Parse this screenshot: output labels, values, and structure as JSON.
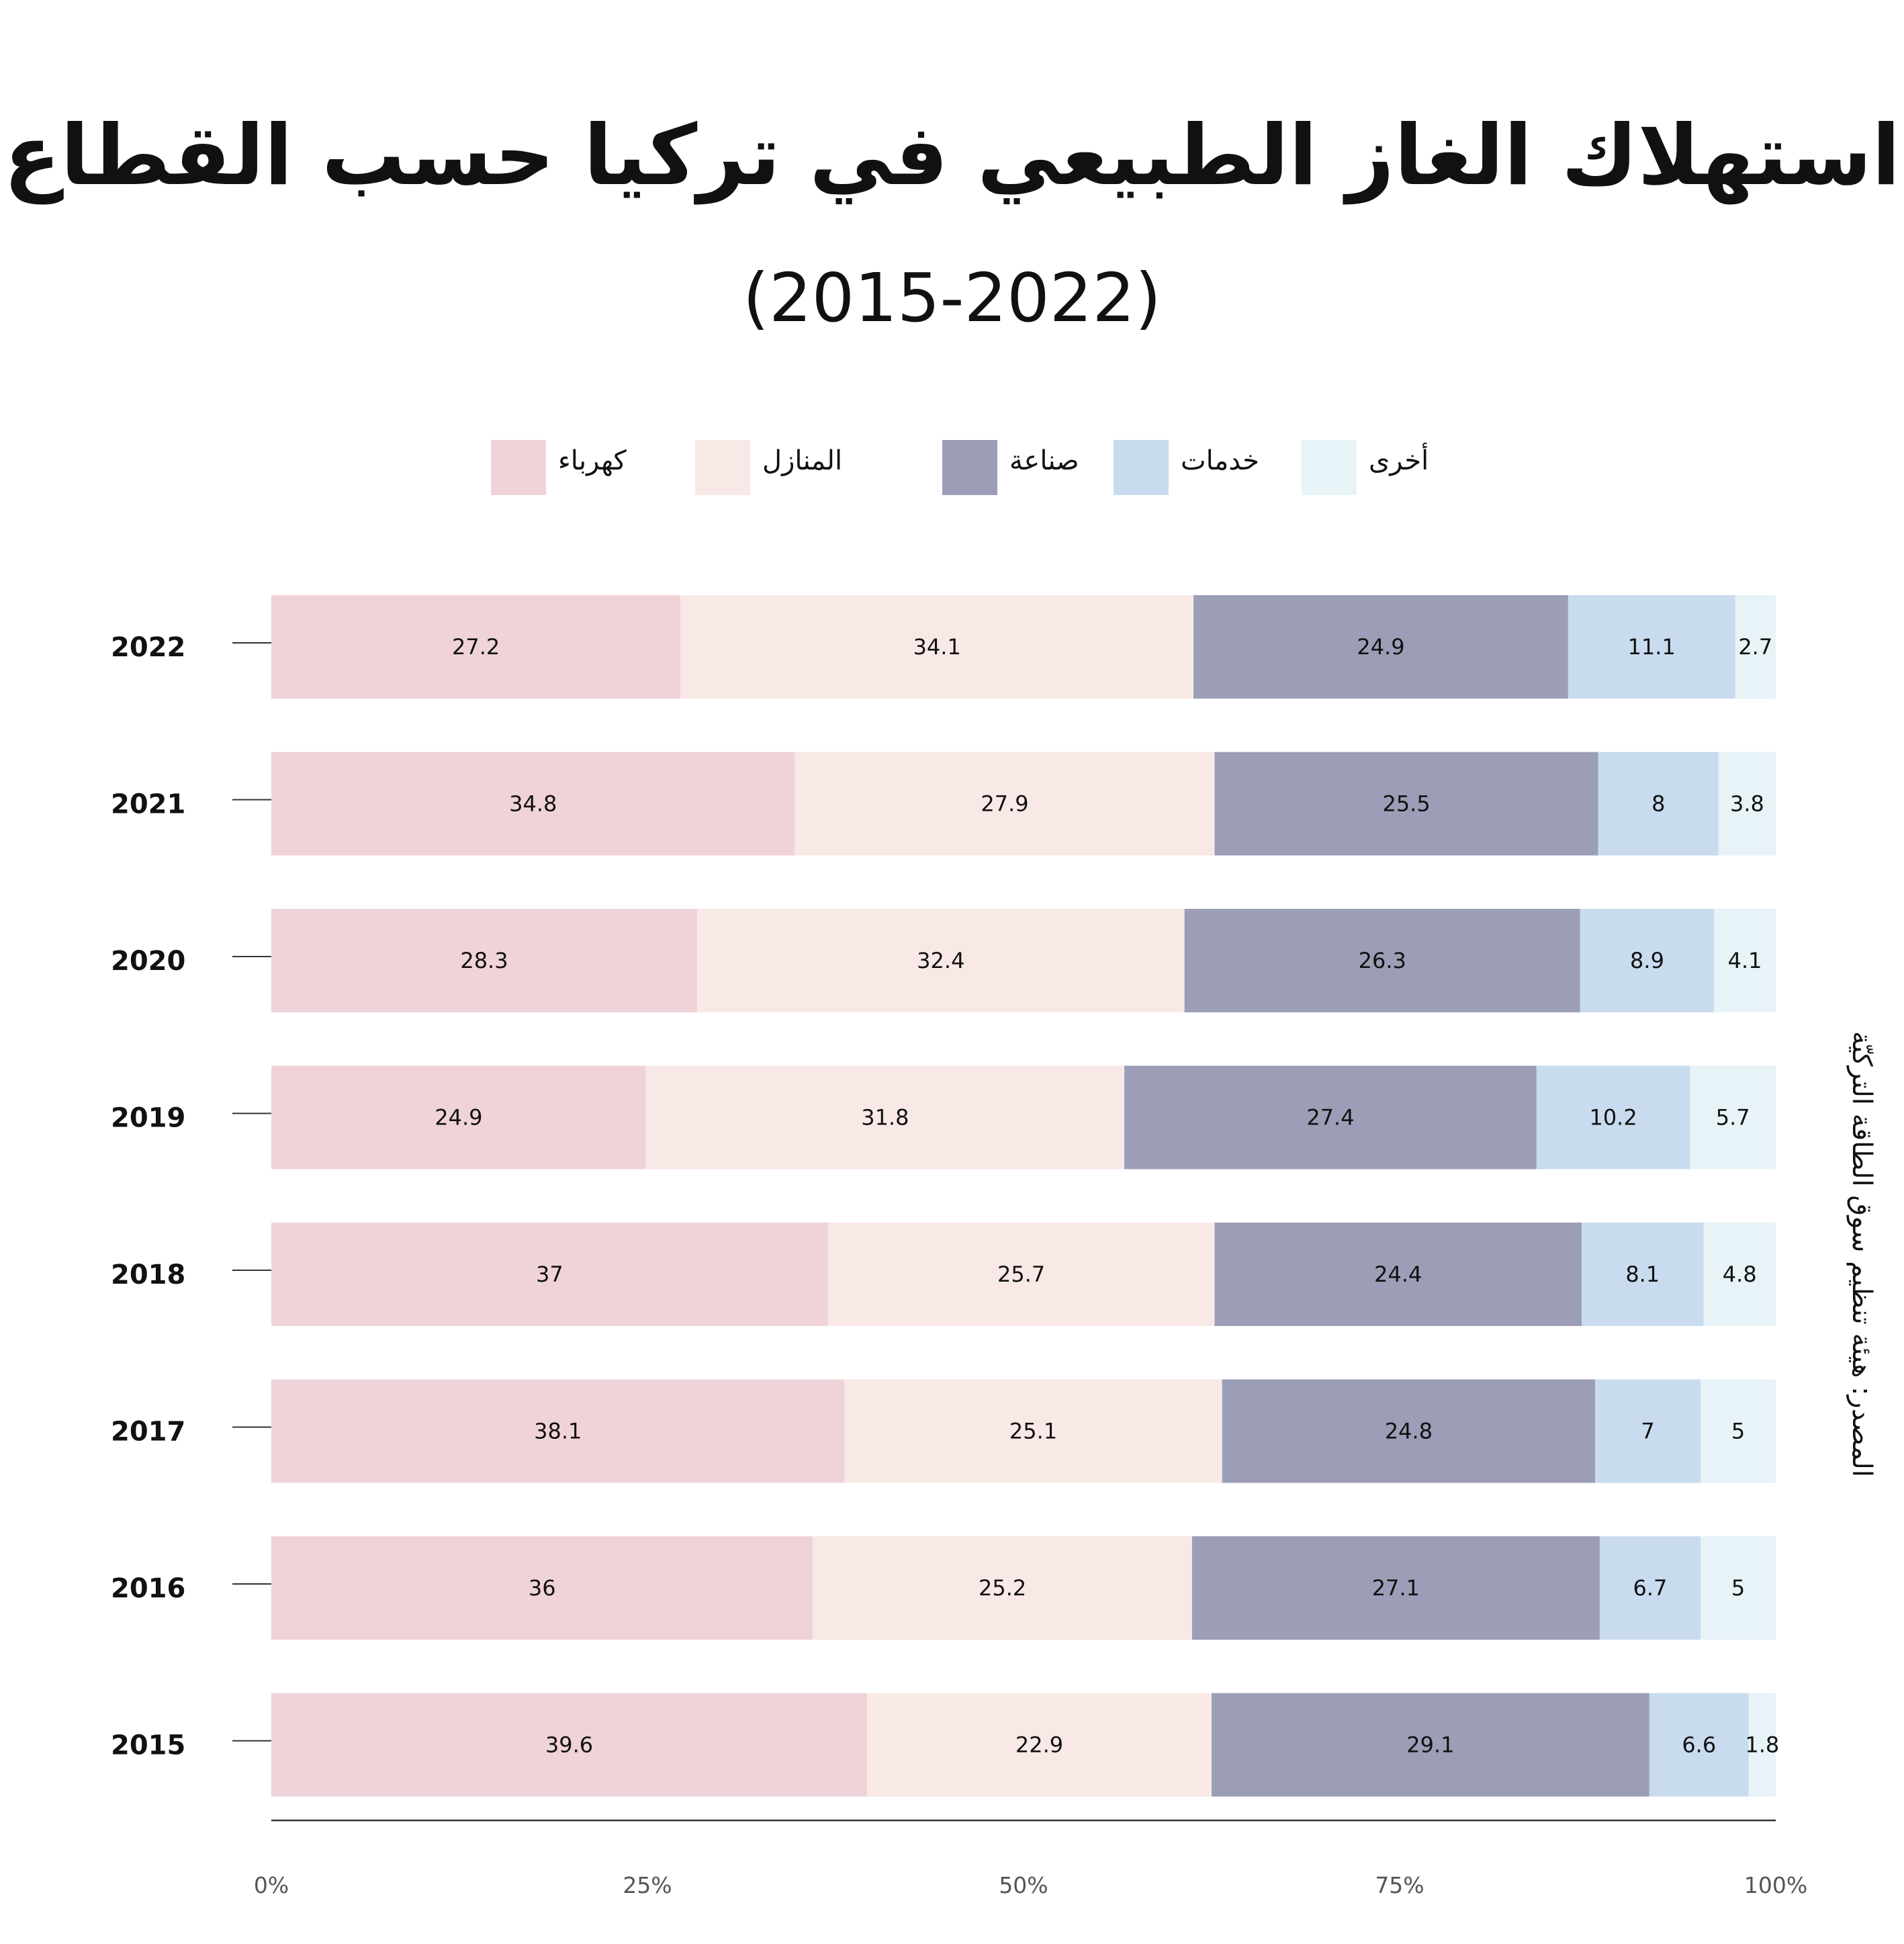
{
  "title": "استهلاك الغاز الطبيعي في تركيا حسب القطاع",
  "subtitle": "(2015-2022)",
  "source": "المصدر: هيئة تنظيم سوق الطاقة التركيّة",
  "chart_data": {
    "type": "bar",
    "orientation": "horizontal",
    "stacked": true,
    "title": "استهلاك الغاز الطبيعي في تركيا حسب القطاع",
    "subtitle": "(2015-2022)",
    "categories": [
      "2022",
      "2021",
      "2020",
      "2019",
      "2018",
      "2017",
      "2016",
      "2015"
    ],
    "series": [
      {
        "name": "كهرباء",
        "color": "#f0d3d9",
        "values": [
          27.2,
          34.8,
          28.3,
          24.9,
          37,
          38.1,
          36,
          39.6
        ]
      },
      {
        "name": "المنازل",
        "color": "#f9e9e6",
        "values": [
          34.1,
          27.9,
          32.4,
          31.8,
          25.7,
          25.1,
          25.2,
          22.9
        ]
      },
      {
        "name": "صناعة",
        "color": "#9b9eb6",
        "values": [
          24.9,
          25.5,
          26.3,
          27.4,
          24.4,
          24.8,
          27.1,
          29.1
        ]
      },
      {
        "name": "خدمات",
        "color": "#c9dbee",
        "values": [
          11.1,
          8,
          8.9,
          10.2,
          8.1,
          7,
          6.7,
          6.6
        ]
      },
      {
        "name": "أخرى",
        "color": "#e7f3f6",
        "values": [
          2.7,
          3.8,
          4.1,
          5.7,
          4.8,
          5,
          5,
          1.8
        ]
      }
    ],
    "x_ticks": [
      "0%",
      "25%",
      "50%",
      "75%",
      "100%"
    ],
    "xlim": [
      0,
      100
    ],
    "legend_position": "top",
    "grid": false
  }
}
